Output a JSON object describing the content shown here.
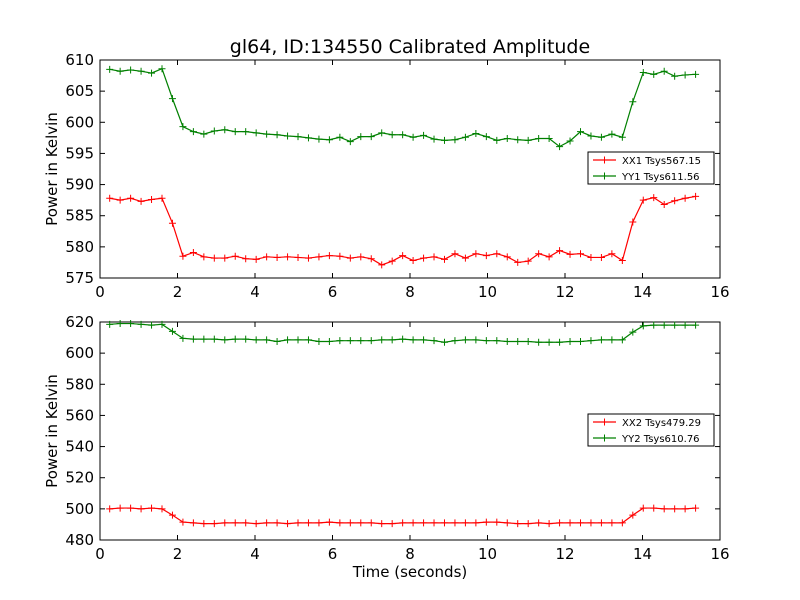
{
  "chart_data": {
    "title": "gl64, ID:134550 Calibrated Amplitude",
    "xlabel": "Time (seconds)",
    "xlim": [
      0,
      16
    ],
    "x_ticks": [
      0,
      2,
      4,
      6,
      8,
      10,
      12,
      14,
      16
    ],
    "x": [
      0.25,
      0.52,
      0.79,
      1.06,
      1.33,
      1.6,
      1.87,
      2.14,
      2.41,
      2.68,
      2.95,
      3.22,
      3.49,
      3.76,
      4.03,
      4.3,
      4.57,
      4.84,
      5.11,
      5.38,
      5.65,
      5.92,
      6.19,
      6.46,
      6.73,
      7.0,
      7.27,
      7.54,
      7.81,
      8.08,
      8.35,
      8.62,
      8.89,
      9.16,
      9.43,
      9.7,
      9.97,
      10.24,
      10.51,
      10.78,
      11.05,
      11.32,
      11.59,
      11.86,
      12.13,
      12.4,
      12.67,
      12.94,
      13.21,
      13.48,
      13.75,
      14.02,
      14.29,
      14.56,
      14.83,
      15.1,
      15.37
    ],
    "subplots": [
      {
        "type": "line",
        "ylabel": "Power in Kelvin",
        "ylim": [
          575,
          610
        ],
        "y_ticks": [
          575,
          580,
          585,
          590,
          595,
          600,
          605,
          610
        ],
        "legend_position": "right",
        "series": [
          {
            "name": "XX1 Tsys567.15",
            "color": "#ff0000",
            "values": [
              587.8,
              587.5,
              587.8,
              587.3,
              587.6,
              587.8,
              583.8,
              578.5,
              579.1,
              578.4,
              578.2,
              578.2,
              578.5,
              578.1,
              578.0,
              578.4,
              578.3,
              578.4,
              578.3,
              578.2,
              578.4,
              578.6,
              578.5,
              578.2,
              578.4,
              578.1,
              577.1,
              577.7,
              578.6,
              577.8,
              578.2,
              578.4,
              578.0,
              578.9,
              578.2,
              578.9,
              578.6,
              578.9,
              578.4,
              577.5,
              577.7,
              578.9,
              578.4,
              579.4,
              578.8,
              578.9,
              578.3,
              578.3,
              578.9,
              577.8,
              584.0,
              587.5,
              587.9,
              586.8,
              587.4,
              587.8,
              588.1
            ]
          },
          {
            "name": "YY1 Tsys611.56",
            "color": "#008000",
            "values": [
              608.5,
              608.2,
              608.4,
              608.2,
              607.9,
              608.6,
              603.8,
              599.3,
              598.5,
              598.1,
              598.6,
              598.8,
              598.5,
              598.5,
              598.3,
              598.1,
              598.0,
              597.8,
              597.7,
              597.5,
              597.3,
              597.2,
              597.6,
              596.9,
              597.7,
              597.7,
              598.3,
              598.0,
              598.0,
              597.6,
              597.9,
              597.3,
              597.1,
              597.2,
              597.6,
              598.2,
              597.7,
              597.1,
              597.4,
              597.2,
              597.1,
              597.4,
              597.4,
              596.1,
              597.0,
              598.5,
              597.8,
              597.6,
              598.1,
              597.6,
              603.3,
              608.0,
              607.7,
              608.2,
              607.4,
              607.6,
              607.7
            ]
          }
        ]
      },
      {
        "type": "line",
        "ylabel": "Power in Kelvin",
        "ylim": [
          480,
          620
        ],
        "y_ticks": [
          480,
          500,
          520,
          540,
          560,
          580,
          600,
          620
        ],
        "legend_position": "right",
        "series": [
          {
            "name": "XX2 Tsys479.29",
            "color": "#ff0000",
            "values": [
              500.0,
              500.5,
              500.5,
              500.0,
              500.5,
              500.0,
              496.0,
              491.5,
              491.0,
              490.5,
              490.5,
              491.0,
              491.0,
              491.0,
              490.5,
              491.0,
              491.0,
              490.5,
              491.0,
              491.0,
              491.0,
              491.5,
              491.0,
              491.0,
              491.0,
              491.0,
              490.5,
              490.5,
              491.0,
              491.0,
              491.0,
              491.0,
              491.0,
              491.0,
              491.0,
              491.0,
              491.5,
              491.5,
              491.0,
              490.5,
              490.5,
              491.0,
              490.5,
              491.0,
              491.0,
              491.0,
              491.0,
              491.0,
              491.0,
              491.0,
              496.0,
              500.5,
              500.5,
              500.0,
              500.0,
              500.0,
              500.5
            ]
          },
          {
            "name": "YY2 Tsys610.76",
            "color": "#008000",
            "values": [
              618.5,
              619.0,
              619.0,
              618.5,
              618.0,
              618.5,
              614.0,
              609.5,
              609.0,
              609.0,
              609.0,
              608.5,
              609.0,
              609.0,
              608.5,
              608.5,
              607.5,
              608.5,
              608.5,
              608.5,
              607.5,
              607.5,
              608.0,
              608.0,
              608.0,
              608.0,
              608.5,
              608.5,
              609.0,
              608.5,
              608.5,
              608.0,
              607.0,
              608.0,
              608.5,
              608.5,
              608.0,
              608.0,
              607.5,
              607.5,
              607.5,
              607.0,
              607.0,
              607.0,
              607.5,
              607.5,
              608.0,
              608.5,
              608.5,
              608.5,
              613.5,
              617.5,
              618.0,
              618.0,
              618.0,
              618.0,
              618.0
            ]
          }
        ]
      }
    ]
  }
}
